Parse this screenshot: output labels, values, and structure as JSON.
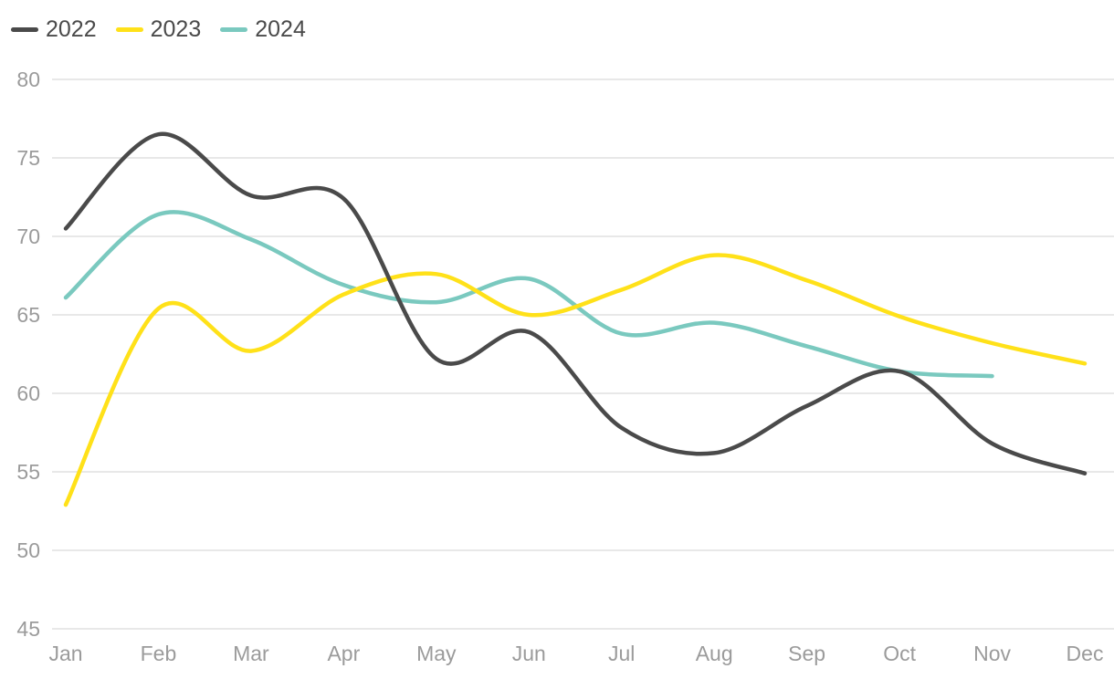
{
  "page": {
    "background": "#ffffff",
    "axis_text_color": "#9b9b9b",
    "gridline_color": "#e8e8e8",
    "legend_text_color": "#4a4a4a"
  },
  "legend": {
    "items": [
      {
        "label": "2022",
        "color": "#4a4a4a"
      },
      {
        "label": "2023",
        "color": "#ffe119"
      },
      {
        "label": "2024",
        "color": "#7ac9bf"
      }
    ]
  },
  "chart_data": {
    "type": "line",
    "title": "",
    "xlabel": "",
    "ylabel": "",
    "x": [
      "Jan",
      "Feb",
      "Mar",
      "Apr",
      "May",
      "Jun",
      "Jul",
      "Aug",
      "Sep",
      "Oct",
      "Nov",
      "Dec"
    ],
    "series": [
      {
        "name": "2022",
        "color": "#4a4a4a",
        "values": [
          70.5,
          76.5,
          72.6,
          72.4,
          62.2,
          63.9,
          57.8,
          56.2,
          59.2,
          61.4,
          56.8,
          54.9
        ]
      },
      {
        "name": "2023",
        "color": "#ffe119",
        "values": [
          52.9,
          65.4,
          62.7,
          66.3,
          67.6,
          65.0,
          66.6,
          68.8,
          67.2,
          64.9,
          63.2,
          61.9
        ]
      },
      {
        "name": "2024",
        "color": "#7ac9bf",
        "values": [
          66.1,
          71.4,
          69.8,
          66.9,
          65.8,
          67.3,
          63.8,
          64.5,
          63.0,
          61.4,
          61.1
        ]
      }
    ],
    "ylim": [
      45,
      80
    ],
    "y_ticks": [
      80,
      75,
      70,
      65,
      60,
      55,
      50,
      45
    ],
    "grid": "horizontal",
    "legend_position": "top-left",
    "curve": "smooth",
    "note_2024_ends": "Nov"
  }
}
